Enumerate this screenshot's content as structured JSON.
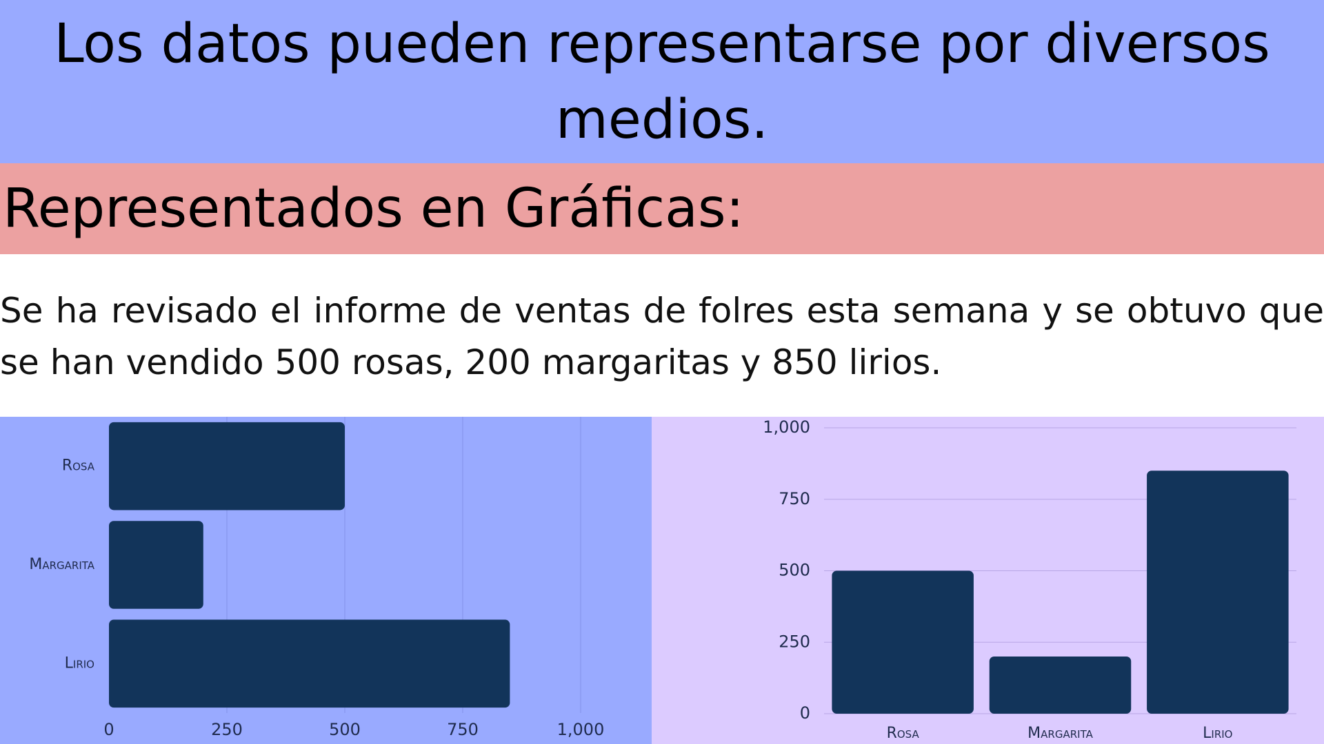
{
  "header": {
    "title": "Los datos pueden representarse por diversos medios."
  },
  "section": {
    "heading": "Representados en Gráficas:",
    "description": "Se ha revisado el informe de ventas de folres esta semana y se obtuvo que se han vendido 500 rosas, 200 margaritas y 850 lirios."
  },
  "colors": {
    "bar": "#12345a",
    "left_panel_bg": "#99aaff",
    "right_panel_bg": "#dccbff",
    "title_band": "#99aaff",
    "subtitle_band": "#eca1a1"
  },
  "chart_data": [
    {
      "type": "bar",
      "orientation": "horizontal",
      "categories": [
        "Rosa",
        "Margarita",
        "Lirio"
      ],
      "values": [
        500,
        200,
        850
      ],
      "xlim": [
        0,
        1000
      ],
      "ticks": [
        "0",
        "250",
        "500",
        "750",
        "1,000"
      ],
      "grid": true
    },
    {
      "type": "bar",
      "orientation": "vertical",
      "categories": [
        "Rosa",
        "Margarita",
        "Lirio"
      ],
      "values": [
        500,
        200,
        850
      ],
      "ylim": [
        0,
        1000
      ],
      "ticks": [
        "0",
        "250",
        "500",
        "750",
        "1,000"
      ],
      "grid": true
    }
  ]
}
